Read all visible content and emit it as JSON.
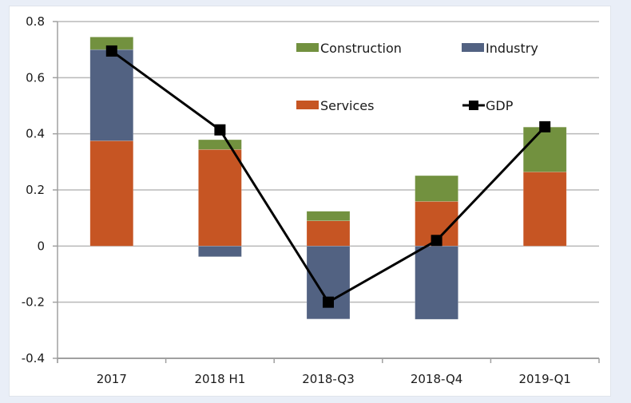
{
  "chart_data": {
    "type": "bar",
    "stacked": true,
    "title": "",
    "xlabel": "",
    "ylabel": "",
    "categories": [
      "2017",
      "2018 H1",
      "2018-Q3",
      "2018-Q4",
      "2019-Q1"
    ],
    "ylim": [
      -0.4,
      0.8
    ],
    "yticks": [
      -0.4,
      -0.2,
      0,
      0.2,
      0.4,
      0.6,
      0.8
    ],
    "ytick_labels": [
      "-0.4",
      "-0.2",
      "0",
      "0.2",
      "0.4",
      "0.6",
      "0.8"
    ],
    "grid": true,
    "legend_position": "top-right-inside",
    "series": [
      {
        "name": "Services",
        "kind": "bar",
        "color": "#c65523",
        "values": [
          0.375,
          0.344,
          0.09,
          0.159,
          0.264
        ]
      },
      {
        "name": "Industry",
        "kind": "bar",
        "color": "#526282",
        "values": [
          0.325,
          -0.038,
          -0.26,
          -0.261,
          0.0
        ]
      },
      {
        "name": "Construction",
        "kind": "bar",
        "color": "#72913f",
        "values": [
          0.045,
          0.035,
          0.034,
          0.092,
          0.16
        ]
      },
      {
        "name": "GDP",
        "kind": "line",
        "color": "#000000",
        "marker": "square",
        "values": [
          0.695,
          0.414,
          -0.2,
          0.02,
          0.425
        ]
      }
    ],
    "legend": [
      {
        "name": "Construction",
        "kind": "bar",
        "color": "#72913f"
      },
      {
        "name": "Industry",
        "kind": "bar",
        "color": "#526282"
      },
      {
        "name": "Services",
        "kind": "bar",
        "color": "#c65523"
      },
      {
        "name": "GDP",
        "kind": "line",
        "color": "#000000"
      }
    ]
  }
}
